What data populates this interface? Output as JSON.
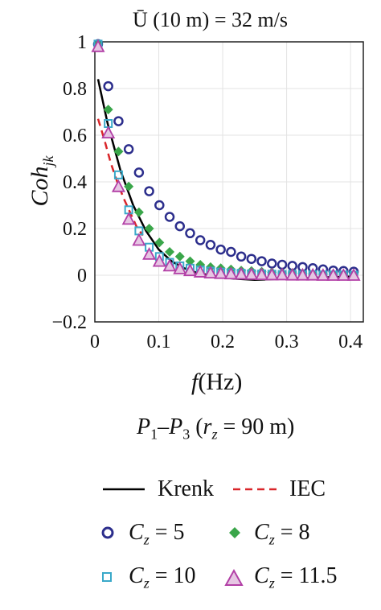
{
  "title": "Ū (10 m) = 32 m/s",
  "subtitle": "P1–P3 (rz = 90 m)",
  "chart_data": {
    "type": "scatter",
    "title": "Ū (10 m) = 32 m/s",
    "xlabel": "f(Hz)",
    "ylabel": "Coh_jk",
    "xlim": [
      0,
      0.42
    ],
    "ylim": [
      -0.2,
      1.0
    ],
    "xticks": [
      "0",
      "0.1",
      "0.2",
      "0.3",
      "0.4"
    ],
    "yticks": [
      "−0.2",
      "0",
      "0.2",
      "0.4",
      "0.6",
      "0.8",
      "1"
    ],
    "grid": true,
    "legend_position": "bottom",
    "series": [
      {
        "name": "Krenk",
        "kind": "line",
        "color": "#000000",
        "dash": "solid",
        "x": [
          0.005,
          0.02,
          0.04,
          0.06,
          0.08,
          0.1,
          0.12,
          0.14,
          0.16,
          0.18,
          0.2,
          0.22,
          0.25,
          0.3,
          0.35,
          0.41
        ],
        "y": [
          0.84,
          0.65,
          0.45,
          0.3,
          0.19,
          0.11,
          0.06,
          0.03,
          0.01,
          0.0,
          -0.01,
          -0.015,
          -0.02,
          -0.015,
          -0.01,
          -0.005
        ]
      },
      {
        "name": "IEC",
        "kind": "line",
        "color": "#d9262a",
        "dash": "dashed",
        "x": [
          0.005,
          0.015,
          0.025,
          0.035,
          0.045,
          0.055,
          0.065,
          0.075
        ],
        "y": [
          0.67,
          0.58,
          0.48,
          0.4,
          0.33,
          0.27,
          0.21,
          0.17
        ]
      },
      {
        "name": "Cz = 5",
        "kind": "marker",
        "marker": "circle",
        "color": "#2c2e8c",
        "x": [
          0.005,
          0.021,
          0.037,
          0.053,
          0.069,
          0.085,
          0.101,
          0.117,
          0.133,
          0.149,
          0.165,
          0.181,
          0.197,
          0.213,
          0.229,
          0.245,
          0.261,
          0.277,
          0.293,
          0.309,
          0.325,
          0.341,
          0.357,
          0.373,
          0.389,
          0.405
        ],
        "y": [
          0.99,
          0.81,
          0.66,
          0.54,
          0.44,
          0.36,
          0.3,
          0.25,
          0.21,
          0.18,
          0.15,
          0.13,
          0.11,
          0.1,
          0.08,
          0.07,
          0.06,
          0.05,
          0.045,
          0.04,
          0.035,
          0.03,
          0.025,
          0.02,
          0.018,
          0.015
        ]
      },
      {
        "name": "Cz = 8",
        "kind": "marker",
        "marker": "diamond",
        "color": "#3aa64a",
        "x": [
          0.005,
          0.021,
          0.037,
          0.053,
          0.069,
          0.085,
          0.101,
          0.117,
          0.133,
          0.149,
          0.165,
          0.181,
          0.197,
          0.213,
          0.229,
          0.245,
          0.261,
          0.277,
          0.293,
          0.309,
          0.325,
          0.341,
          0.357,
          0.373,
          0.389,
          0.405
        ],
        "y": [
          0.99,
          0.71,
          0.53,
          0.38,
          0.27,
          0.2,
          0.14,
          0.1,
          0.08,
          0.06,
          0.045,
          0.035,
          0.03,
          0.025,
          0.02,
          0.018,
          0.015,
          0.012,
          0.01,
          0.01,
          0.008,
          0.006,
          0.005,
          0.005,
          0.004,
          0.003
        ]
      },
      {
        "name": "Cz = 10",
        "kind": "marker",
        "marker": "square",
        "color": "#3aa9c9",
        "x": [
          0.005,
          0.021,
          0.037,
          0.053,
          0.069,
          0.085,
          0.101,
          0.117,
          0.133,
          0.149,
          0.165,
          0.181,
          0.197,
          0.213,
          0.229,
          0.245,
          0.261,
          0.277,
          0.293,
          0.309,
          0.325,
          0.341,
          0.357,
          0.373,
          0.389,
          0.405
        ],
        "y": [
          0.99,
          0.65,
          0.43,
          0.28,
          0.19,
          0.12,
          0.08,
          0.055,
          0.04,
          0.03,
          0.022,
          0.017,
          0.013,
          0.01,
          0.008,
          0.006,
          0.005,
          0.004,
          0.003,
          0.003,
          0.002,
          0.002,
          0.001,
          0.001,
          0.001,
          0.0
        ]
      },
      {
        "name": "Cz = 11.5",
        "kind": "marker",
        "marker": "triangle",
        "color": "#b23fa6",
        "x": [
          0.005,
          0.021,
          0.037,
          0.053,
          0.069,
          0.085,
          0.101,
          0.117,
          0.133,
          0.149,
          0.165,
          0.181,
          0.197,
          0.213,
          0.229,
          0.245,
          0.261,
          0.277,
          0.293,
          0.309,
          0.325,
          0.341,
          0.357,
          0.373,
          0.389,
          0.405
        ],
        "y": [
          0.98,
          0.61,
          0.38,
          0.24,
          0.15,
          0.09,
          0.06,
          0.04,
          0.028,
          0.02,
          0.014,
          0.01,
          0.008,
          0.006,
          0.005,
          0.004,
          0.003,
          0.002,
          0.002,
          0.001,
          0.001,
          0.001,
          0.0,
          0.0,
          0.0,
          0.0
        ]
      }
    ]
  },
  "legend": {
    "krenk": "Krenk",
    "iec": "IEC",
    "cz5": "= 5",
    "cz8": "= 8",
    "cz10": "= 10",
    "cz115": "= 11.5",
    "c_symbol": "C",
    "z_sub": "z"
  }
}
